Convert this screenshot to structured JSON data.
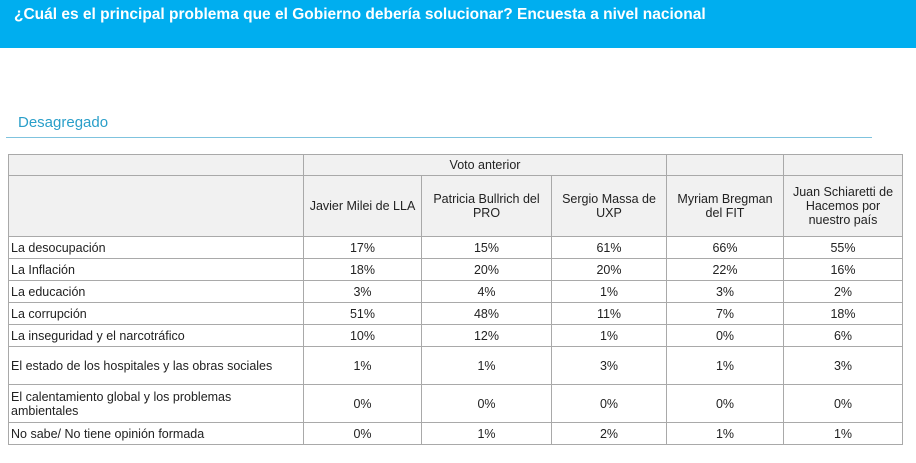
{
  "header": {
    "title": "¿Cuál es el principal problema que el Gobierno debería solucionar? Encuesta a nivel nacional"
  },
  "section": {
    "title": "Desagregado"
  },
  "table": {
    "group_header": "Voto anterior",
    "columns": [
      "Javier Milei de LLA",
      "Patricia Bullrich del PRO",
      "Sergio Massa de UXP",
      "Myriam Bregman del FIT",
      "Juan Schiaretti de Hacemos por nuestro país"
    ],
    "rows": [
      {
        "label": "La desocupación",
        "values": [
          "17%",
          "15%",
          "61%",
          "66%",
          "55%"
        ]
      },
      {
        "label": "La Inflación",
        "values": [
          "18%",
          "20%",
          "20%",
          "22%",
          "16%"
        ]
      },
      {
        "label": "La educación",
        "values": [
          "3%",
          "4%",
          "1%",
          "3%",
          "2%"
        ]
      },
      {
        "label": "La corrupción",
        "values": [
          "51%",
          "48%",
          "11%",
          "7%",
          "18%"
        ]
      },
      {
        "label": "La inseguridad y el narcotráfico",
        "values": [
          "10%",
          "12%",
          "1%",
          "0%",
          "6%"
        ]
      },
      {
        "label": "El estado de los hospitales y las obras sociales",
        "values": [
          "1%",
          "1%",
          "3%",
          "1%",
          "3%"
        ]
      },
      {
        "label": "El calentamiento global y los problemas ambientales",
        "values": [
          "0%",
          "0%",
          "0%",
          "0%",
          "0%"
        ]
      },
      {
        "label": "No sabe/ No tiene opinión formada",
        "values": [
          "0%",
          "1%",
          "2%",
          "1%",
          "1%"
        ]
      }
    ]
  }
}
